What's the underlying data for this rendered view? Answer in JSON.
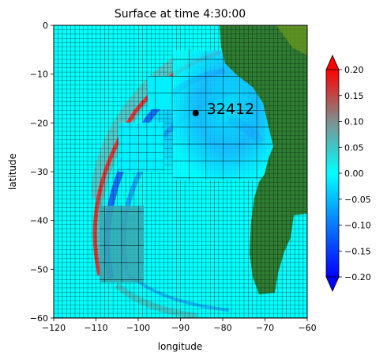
{
  "chart_data": {
    "type": "heatmap",
    "title": "Surface at time 4:30:00",
    "xlabel": "longitude",
    "ylabel": "latitude",
    "xlim": [
      -120,
      -60
    ],
    "ylim": [
      -60,
      0
    ],
    "x_ticks": [
      -120,
      -110,
      -100,
      -90,
      -80,
      -70,
      -60
    ],
    "x_tick_labels": [
      "−120",
      "−110",
      "−100",
      "−90",
      "−80",
      "−70",
      "−60"
    ],
    "y_ticks": [
      0,
      -10,
      -20,
      -30,
      -40,
      -50,
      -60
    ],
    "y_tick_labels": [
      "0",
      "−10",
      "−20",
      "−30",
      "−40",
      "−50",
      "−60"
    ],
    "colorbar": {
      "min": -0.2,
      "max": 0.2,
      "ticks": [
        0.2,
        0.15,
        0.1,
        0.05,
        0.0,
        -0.05,
        -0.1,
        -0.15,
        -0.2
      ],
      "tick_labels": [
        "0.20",
        "0.15",
        "0.10",
        "0.05",
        "0.00",
        "−0.05",
        "−0.10",
        "−0.15",
        "−0.20"
      ],
      "extend": "both",
      "colors": [
        "#0000ff",
        "#00ffff",
        "#ff0000"
      ]
    },
    "gauge": {
      "label": "32412",
      "lon": -86.4,
      "lat": -18.0
    },
    "colors": {
      "ocean": "#00ffff",
      "land": "#2e7d32",
      "wave_red": "#e23a3a",
      "wave_blue": "#1a5cff",
      "grid_line": "#000000"
    }
  }
}
